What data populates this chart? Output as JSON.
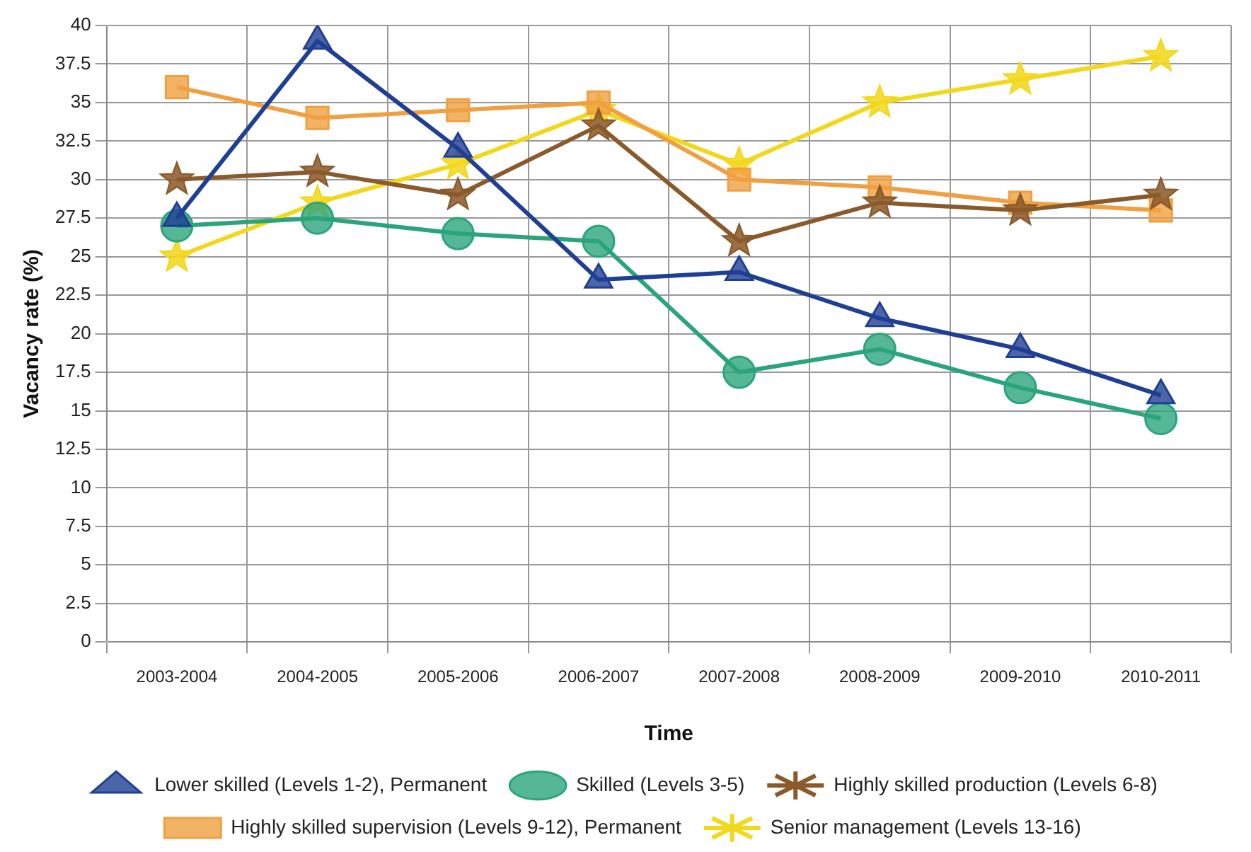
{
  "chart_data": {
    "type": "line",
    "xlabel": "Time",
    "ylabel": "Vacancy rate (%)",
    "categories": [
      "2003-2004",
      "2004-2005",
      "2005-2006",
      "2006-2007",
      "2007-2008",
      "2008-2009",
      "2009-2010",
      "2010-2011"
    ],
    "ylim": [
      0,
      40
    ],
    "yticks": [
      0,
      2.5,
      5,
      7.5,
      10,
      12.5,
      15,
      17.5,
      20,
      22.5,
      25,
      27.5,
      30,
      32.5,
      35,
      37.5,
      40
    ],
    "grid": true,
    "legend": "bottom",
    "line_style": "solid",
    "series": [
      {
        "name": "Lower skilled (Levels 1-2), Permanent",
        "color": "#1f3f94",
        "marker": "triangle",
        "values": [
          27.5,
          39,
          32,
          23.5,
          24,
          21,
          19,
          16
        ]
      },
      {
        "name": "Skilled (Levels 3-5)",
        "color": "#2aa57a",
        "marker": "circle",
        "values": [
          27,
          27.5,
          26.5,
          26,
          17.5,
          19,
          16.5,
          14.5
        ]
      },
      {
        "name": "Highly skilled production (Levels 6-8)",
        "color": "#8b5a2b",
        "marker": "star",
        "values": [
          30,
          30.5,
          29,
          33.5,
          26,
          28.5,
          28,
          29
        ]
      },
      {
        "name": "Highly skilled supervision (Levels 9-12), Permanent",
        "color": "#f0a040",
        "marker": "square",
        "values": [
          36,
          34,
          34.5,
          35,
          30,
          29.5,
          28.5,
          28
        ]
      },
      {
        "name": "Senior management (Levels 13-16)",
        "color": "#f2d81c",
        "marker": "star",
        "values": [
          25,
          28.5,
          31,
          34.5,
          31,
          35,
          36.5,
          38
        ]
      }
    ]
  }
}
